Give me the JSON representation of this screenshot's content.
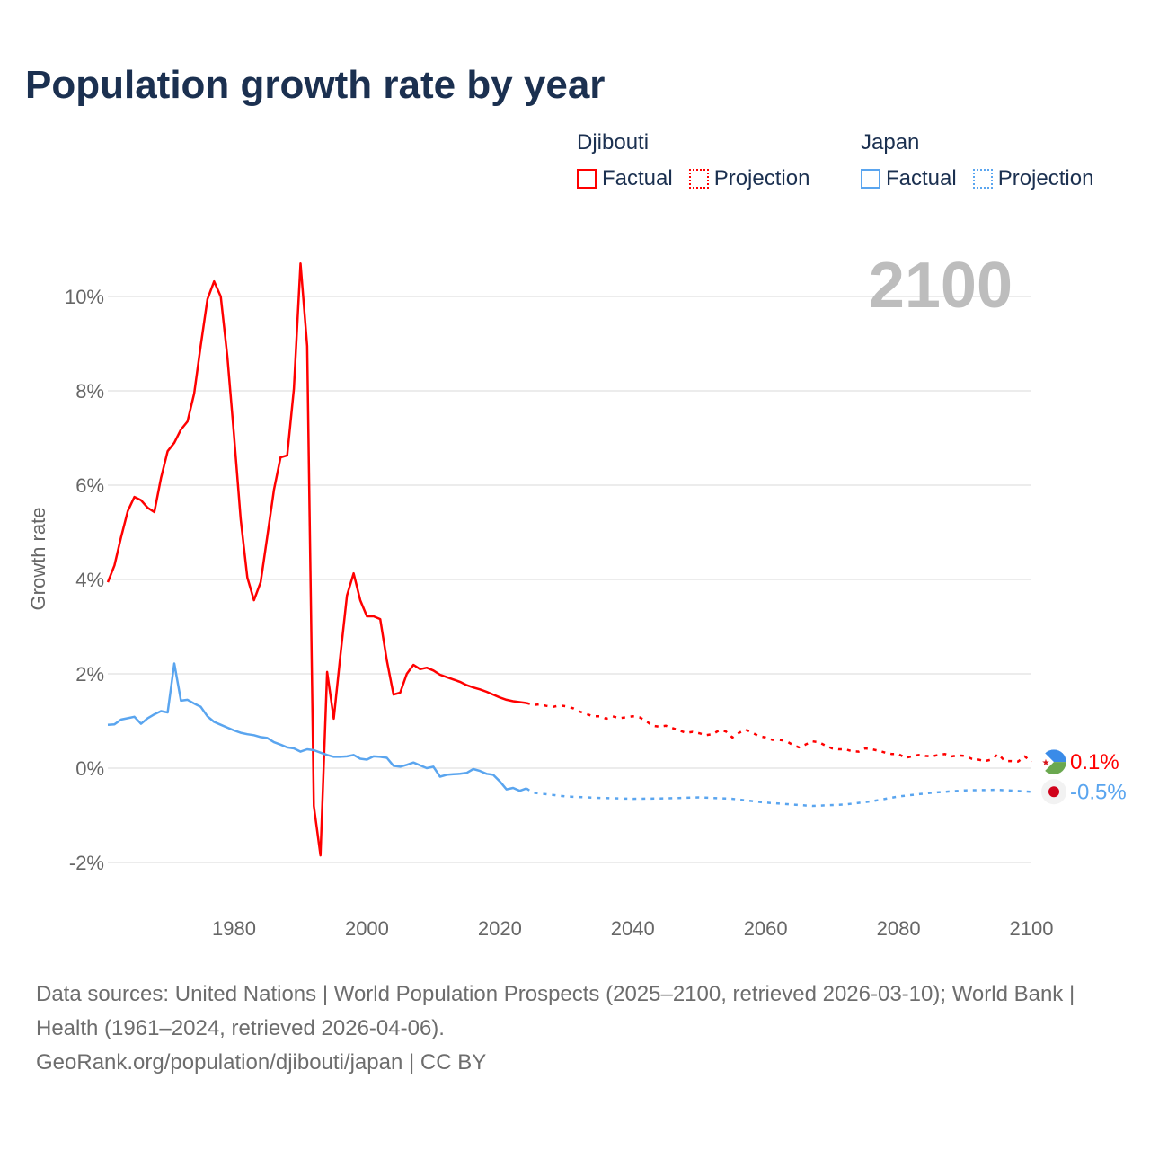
{
  "title": "Population growth rate by year",
  "legend": {
    "groups": [
      {
        "name": "Djibouti",
        "color": "#ff0000",
        "factual": "Factual",
        "projection": "Projection"
      },
      {
        "name": "Japan",
        "color": "#5aa5ef",
        "factual": "Factual",
        "projection": "Projection"
      }
    ]
  },
  "footer": {
    "sources": "Data sources: United Nations | World Population Prospects (2025–2100, retrieved 2026-03-10); World Bank | Health (1961–2024, retrieved 2026-04-06).",
    "link": "GeoRank.org/population/djibouti/japan | CC BY"
  },
  "chart_data": {
    "type": "line",
    "title": "Population growth rate by year",
    "year_label": "2100",
    "ylabel": "Growth rate",
    "xlabel": "",
    "xlim": [
      1961,
      2100
    ],
    "ylim": [
      -3,
      11
    ],
    "x_ticks": [
      1980,
      2000,
      2020,
      2040,
      2060,
      2080,
      2100
    ],
    "y_ticks": [
      -2,
      0,
      2,
      4,
      6,
      8,
      10
    ],
    "y_tick_labels": [
      "-2%",
      "0%",
      "2%",
      "4%",
      "6%",
      "8%",
      "10%"
    ],
    "grid": true,
    "legend_position": "top-right",
    "end_labels": {
      "Djibouti": "0.1%",
      "Japan": "-0.5%"
    },
    "series": [
      {
        "name": "Djibouti",
        "kind": "Factual",
        "color": "#ff0000",
        "start_year": 1961,
        "values": [
          3.94,
          4.3,
          4.9,
          5.45,
          5.75,
          5.68,
          5.52,
          5.43,
          6.15,
          6.72,
          6.9,
          7.18,
          7.35,
          7.94,
          8.97,
          9.94,
          10.32,
          10.0,
          8.72,
          7.05,
          5.28,
          4.04,
          3.56,
          3.94,
          4.91,
          5.9,
          6.59,
          6.63,
          8.04,
          10.7,
          8.95,
          -0.8,
          -1.85,
          2.04,
          1.05,
          2.38,
          3.66,
          4.13,
          3.56,
          3.22,
          3.22,
          3.16,
          2.28,
          1.56,
          1.6,
          2.0,
          2.19,
          2.1,
          2.13,
          2.07,
          1.98,
          1.93,
          1.88,
          1.83,
          1.76,
          1.71,
          1.67,
          1.62,
          1.56,
          1.5,
          1.45,
          1.42,
          1.4,
          1.38
        ]
      },
      {
        "name": "Djibouti",
        "kind": "Projection",
        "color": "#ff0000",
        "start_year": 2025,
        "values": [
          1.34,
          1.35,
          1.32,
          1.3,
          1.33,
          1.31,
          1.27,
          1.2,
          1.15,
          1.1,
          1.1,
          1.05,
          1.1,
          1.06,
          1.08,
          1.1,
          1.08,
          1.0,
          0.9,
          0.88,
          0.9,
          0.85,
          0.8,
          0.75,
          0.77,
          0.74,
          0.7,
          0.72,
          0.8,
          0.78,
          0.65,
          0.75,
          0.82,
          0.75,
          0.68,
          0.65,
          0.6,
          0.6,
          0.58,
          0.5,
          0.44,
          0.5,
          0.57,
          0.55,
          0.48,
          0.42,
          0.4,
          0.4,
          0.36,
          0.35,
          0.42,
          0.4,
          0.37,
          0.33,
          0.3,
          0.3,
          0.22,
          0.25,
          0.28,
          0.26,
          0.25,
          0.28,
          0.3,
          0.25,
          0.27,
          0.26,
          0.2,
          0.18,
          0.15,
          0.18,
          0.3,
          0.15,
          0.15,
          0.14,
          0.25,
          0.13
        ]
      },
      {
        "name": "Japan",
        "kind": "Factual",
        "color": "#5aa5ef",
        "start_year": 1961,
        "values": [
          0.92,
          0.93,
          1.03,
          1.06,
          1.09,
          0.94,
          1.06,
          1.14,
          1.21,
          1.18,
          2.22,
          1.43,
          1.45,
          1.37,
          1.3,
          1.1,
          0.98,
          0.92,
          0.86,
          0.8,
          0.75,
          0.72,
          0.7,
          0.66,
          0.64,
          0.55,
          0.5,
          0.44,
          0.42,
          0.35,
          0.4,
          0.38,
          0.33,
          0.28,
          0.24,
          0.24,
          0.25,
          0.28,
          0.2,
          0.18,
          0.25,
          0.24,
          0.22,
          0.05,
          0.03,
          0.07,
          0.12,
          0.06,
          0.0,
          0.03,
          -0.18,
          -0.14,
          -0.13,
          -0.12,
          -0.1,
          -0.02,
          -0.06,
          -0.12,
          -0.14,
          -0.28,
          -0.45,
          -0.42,
          -0.48,
          -0.43
        ]
      },
      {
        "name": "Japan",
        "kind": "Projection",
        "color": "#5aa5ef",
        "points": [
          [
            2024,
            -0.43
          ],
          [
            2025,
            -0.52
          ],
          [
            2030,
            -0.6
          ],
          [
            2035,
            -0.63
          ],
          [
            2040,
            -0.65
          ],
          [
            2045,
            -0.64
          ],
          [
            2050,
            -0.62
          ],
          [
            2055,
            -0.65
          ],
          [
            2060,
            -0.73
          ],
          [
            2067,
            -0.8
          ],
          [
            2072,
            -0.77
          ],
          [
            2076,
            -0.7
          ],
          [
            2080,
            -0.6
          ],
          [
            2085,
            -0.52
          ],
          [
            2090,
            -0.47
          ],
          [
            2095,
            -0.46
          ],
          [
            2100,
            -0.5
          ]
        ]
      }
    ]
  }
}
